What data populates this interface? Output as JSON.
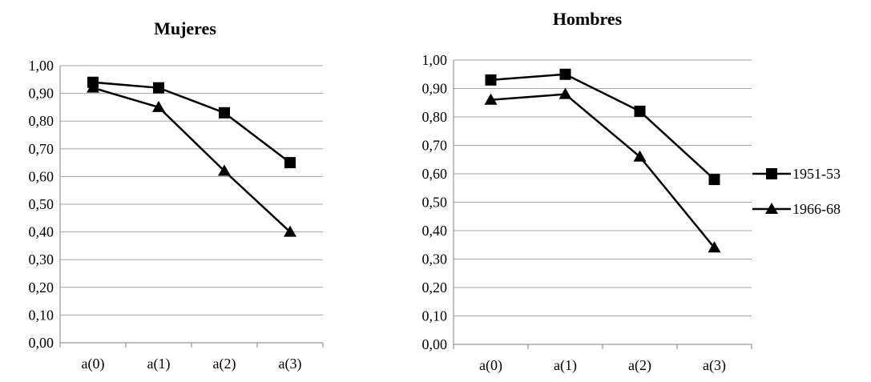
{
  "chart_data": [
    {
      "type": "line",
      "title": "Mujeres",
      "categories": [
        "a(0)",
        "a(1)",
        "a(2)",
        "a(3)"
      ],
      "ylim": [
        0,
        1
      ],
      "yticks": [
        "0,00",
        "0,10",
        "0,20",
        "0,30",
        "0,40",
        "0,50",
        "0,60",
        "0,70",
        "0,80",
        "0,90",
        "1,00"
      ],
      "grid": true,
      "series": [
        {
          "name": "1951-53",
          "marker": "square",
          "values": [
            0.94,
            0.92,
            0.83,
            0.65
          ]
        },
        {
          "name": "1966-68",
          "marker": "triangle",
          "values": [
            0.92,
            0.85,
            0.62,
            0.4
          ]
        }
      ]
    },
    {
      "type": "line",
      "title": "Hombres",
      "categories": [
        "a(0)",
        "a(1)",
        "a(2)",
        "a(3)"
      ],
      "ylim": [
        0,
        1
      ],
      "yticks": [
        "0,00",
        "0,10",
        "0,20",
        "0,30",
        "0,40",
        "0,50",
        "0,60",
        "0,70",
        "0,80",
        "0,90",
        "1,00"
      ],
      "grid": true,
      "series": [
        {
          "name": "1951-53",
          "marker": "square",
          "values": [
            0.93,
            0.95,
            0.82,
            0.58
          ]
        },
        {
          "name": "1966-68",
          "marker": "triangle",
          "values": [
            0.86,
            0.88,
            0.66,
            0.34
          ]
        }
      ]
    }
  ],
  "legend": {
    "position": "right",
    "items": [
      {
        "name": "1951-53",
        "marker": "square"
      },
      {
        "name": "1966-68",
        "marker": "triangle"
      }
    ]
  },
  "colors": {
    "line": "#000000",
    "grid": "#a6a6a6",
    "axis": "#808080"
  }
}
